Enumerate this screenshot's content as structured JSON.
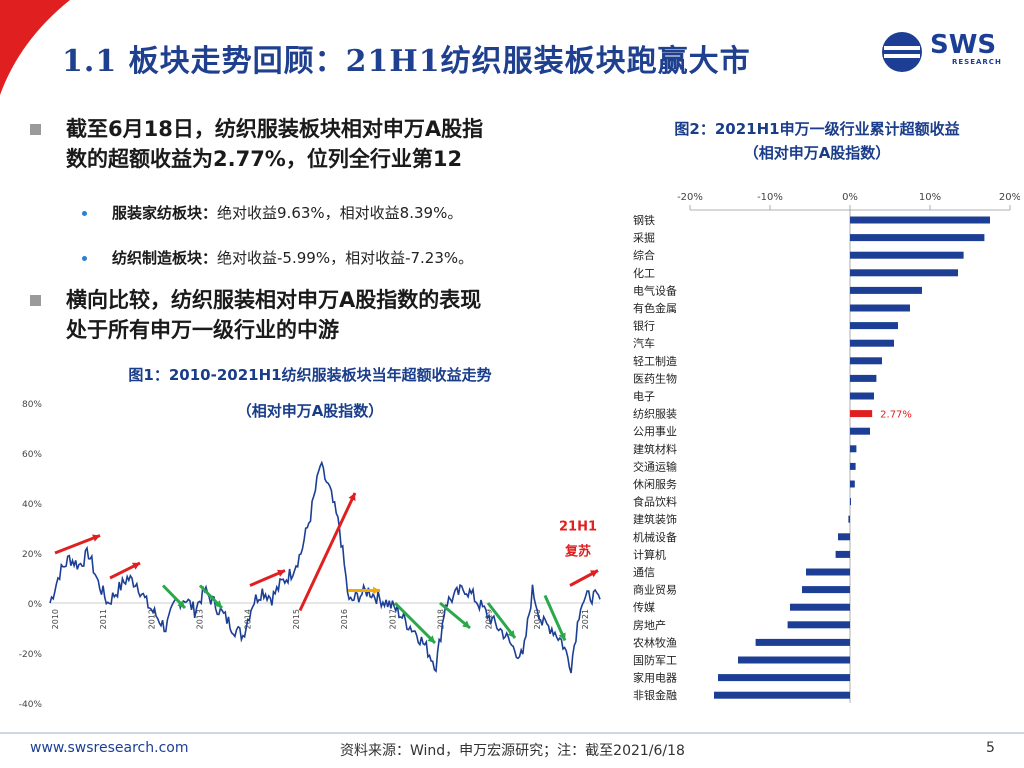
{
  "header": {
    "title": "1.1 板块走势回顾：21H1纺织服装板块跑赢大市",
    "logo_text": "SWS",
    "logo_sub": "RESEARCH"
  },
  "bullets": [
    {
      "line1": "截至6月18日，纺织服装板块相对申万A股指",
      "line2": "数的超额收益为2.77%，位列全行业第12"
    },
    {
      "line1": "横向比较，纺织服装相对申万A股指数的表现",
      "line2": "处于所有申万一级行业的中游"
    }
  ],
  "sub_bullets": [
    {
      "label": "服装家纺板块：",
      "text": "绝对收益9.63%，相对收益8.39%。"
    },
    {
      "label": "纺织制造板块：",
      "text": "绝对收益-5.99%，相对收益-7.23%。"
    }
  ],
  "captions": {
    "fig1_line1": "图1：2010-2021H1纺织服装板块当年超额收益走势",
    "fig1_line2": "（相对申万A股指数）",
    "fig2_line1": "图2：2021H1申万一级行业累计超额收益",
    "fig2_line2": "（相对申万A股指数）"
  },
  "footer": {
    "url": "www.swsresearch.com",
    "source": "资料来源：Wind，申万宏源研究；注：截至2021/6/18",
    "page": "5"
  },
  "colors": {
    "title": "#1f3f8f",
    "bar": "#1c3f95",
    "highlight_bar": "#e02020",
    "line": "#1c3f95",
    "up_arrow": "#e02020",
    "down_arrow": "#2aa84a",
    "flat_arrow": "#f5a800"
  },
  "chart_data": [
    {
      "type": "line",
      "title": "图1：2010-2021H1纺织服装板块当年超额收益走势",
      "ylabel": "",
      "yticks": [
        "80%",
        "60%",
        "40%",
        "20%",
        "0%",
        "-20%",
        "-40%"
      ],
      "ylim": [
        -40,
        80
      ],
      "x_labels": [
        "2010",
        "2011",
        "2012",
        "2013",
        "2014",
        "2015",
        "2016",
        "2017",
        "2018",
        "2019",
        "2020",
        "2021"
      ],
      "annotations": [
        "21H1",
        "复苏"
      ],
      "series": [
        {
          "name": "纺织服装超额收益",
          "values": [
            0,
            12,
            18,
            15,
            20,
            8,
            0,
            5,
            10,
            8,
            0,
            -5,
            -10,
            0,
            2,
            -3,
            5,
            0,
            -5,
            -10,
            -13,
            0,
            5,
            2,
            8,
            12,
            20,
            35,
            55,
            45,
            30,
            0,
            3,
            5,
            2,
            0,
            -3,
            -8,
            -12,
            -18,
            -25,
            0,
            3,
            6,
            2,
            -3,
            -8,
            -12,
            -18,
            -22,
            5,
            -8,
            -10,
            -15,
            -25,
            0,
            3,
            1.5
          ]
        }
      ]
    },
    {
      "type": "bar",
      "orientation": "horizontal",
      "title": "图2：2021H1申万一级行业累计超额收益",
      "xlim": [
        -20,
        20
      ],
      "xticks": [
        "-20%",
        "-10%",
        "0%",
        "10%",
        "20%"
      ],
      "highlight_label": "2.77%",
      "categories": [
        "钢铁",
        "采掘",
        "综合",
        "化工",
        "电气设备",
        "有色金属",
        "银行",
        "汽车",
        "轻工制造",
        "医药生物",
        "电子",
        "纺织服装",
        "公用事业",
        "建筑材料",
        "交通运输",
        "休闲服务",
        "食品饮料",
        "建筑装饰",
        "机械设备",
        "计算机",
        "通信",
        "商业贸易",
        "传媒",
        "房地产",
        "农林牧渔",
        "国防军工",
        "家用电器",
        "非银金融"
      ],
      "values": [
        17.5,
        16.8,
        14.2,
        13.5,
        9.0,
        7.5,
        6.0,
        5.5,
        4.0,
        3.3,
        3.0,
        2.77,
        2.5,
        0.8,
        0.7,
        0.6,
        0.1,
        -0.2,
        -1.5,
        -1.8,
        -5.5,
        -6.0,
        -7.5,
        -7.8,
        -11.8,
        -14.0,
        -16.5,
        -17.0
      ]
    }
  ]
}
